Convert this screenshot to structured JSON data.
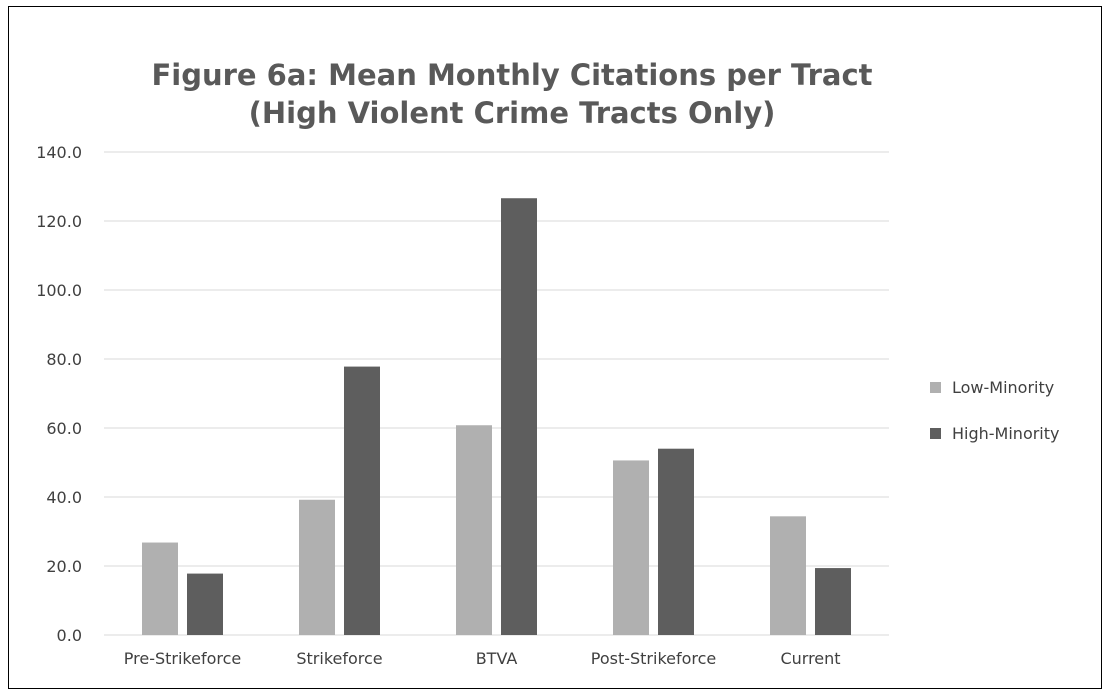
{
  "chart_data": {
    "type": "bar",
    "title_lines": [
      "Figure 6a: Mean Monthly Citations per Tract",
      "(High Violent Crime Tracts Only)"
    ],
    "categories": [
      "Pre-Strikeforce",
      "Strikeforce",
      "BTVA",
      "Post-Strikeforce",
      "Current"
    ],
    "series": [
      {
        "name": "Low-Minority",
        "color": "#b0b0b0",
        "values": [
          26.8,
          39.2,
          60.8,
          50.6,
          34.4
        ]
      },
      {
        "name": "High-Minority",
        "color": "#5e5e5e",
        "values": [
          17.8,
          77.8,
          126.6,
          54.0,
          19.4
        ]
      }
    ],
    "xlabel": "",
    "ylabel": "",
    "ylim": [
      0,
      140
    ],
    "yticks": [
      "0.0",
      "20.0",
      "40.0",
      "60.0",
      "80.0",
      "100.0",
      "120.0",
      "140.0"
    ],
    "grid": true,
    "gridline_color": "#d9d9d9",
    "legend_position": "right"
  }
}
